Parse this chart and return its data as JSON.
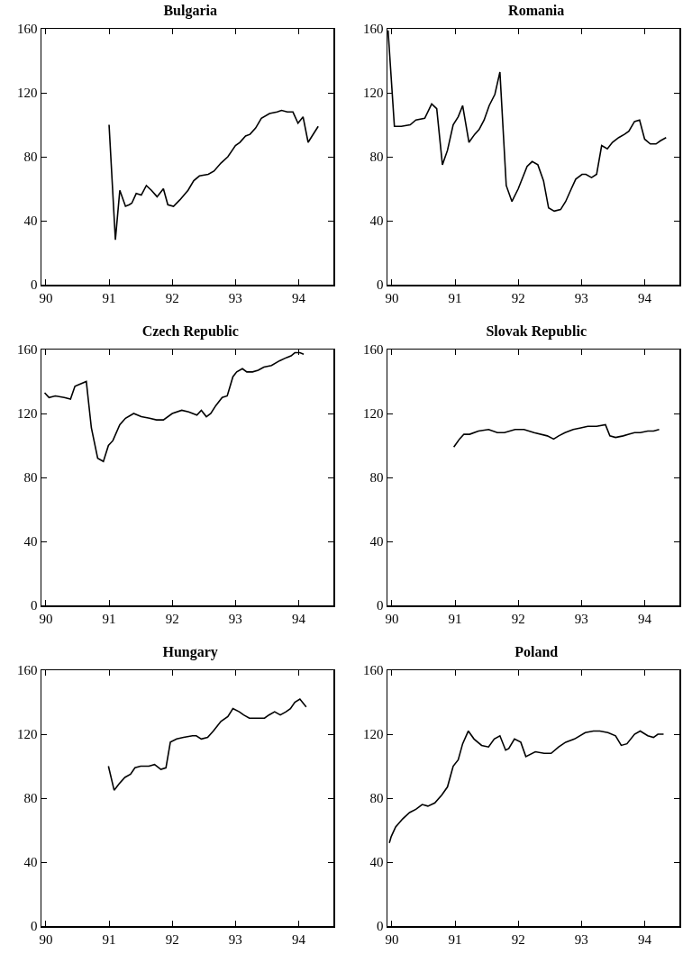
{
  "chart_data": [
    {
      "type": "line",
      "title": "Bulgaria",
      "xlim": [
        89.93,
        94.55
      ],
      "ylim": [
        0,
        160
      ],
      "xticks": [
        {
          "value": 90,
          "label": "90"
        },
        {
          "value": 91,
          "label": "91"
        },
        {
          "value": 92,
          "label": "92"
        },
        {
          "value": 93,
          "label": "93"
        },
        {
          "value": 94,
          "label": "94"
        }
      ],
      "yticks": [
        0,
        40,
        80,
        120,
        160
      ],
      "x": [
        91.0,
        91.1,
        91.17,
        91.26,
        91.32,
        91.36,
        91.43,
        91.51,
        91.59,
        91.67,
        91.76,
        91.86,
        91.93,
        92.02,
        92.12,
        92.25,
        92.34,
        92.43,
        92.57,
        92.66,
        92.77,
        92.88,
        93.0,
        93.07,
        93.16,
        93.23,
        93.32,
        93.41,
        93.54,
        93.66,
        93.73,
        93.82,
        93.91,
        93.99,
        94.07,
        94.15,
        94.31
      ],
      "series": [
        {
          "color": "#000000",
          "values": [
            100,
            28,
            59,
            49,
            50,
            51,
            57,
            56,
            62,
            59,
            55,
            60,
            50,
            49,
            53,
            59,
            65,
            68,
            69,
            71,
            76,
            80,
            87,
            89,
            93,
            94,
            98,
            104,
            107,
            108,
            109,
            108,
            108,
            101,
            105,
            89,
            99
          ]
        }
      ]
    },
    {
      "type": "line",
      "title": "Romania",
      "xlim": [
        89.93,
        94.55
      ],
      "ylim": [
        0,
        160
      ],
      "xticks": [
        {
          "value": 90,
          "label": "90"
        },
        {
          "value": 91,
          "label": "91"
        },
        {
          "value": 92,
          "label": "92"
        },
        {
          "value": 93,
          "label": "93"
        },
        {
          "value": 94,
          "label": "94"
        }
      ],
      "yticks": [
        0,
        40,
        80,
        120,
        160
      ],
      "x": [
        89.94,
        90.04,
        90.15,
        90.29,
        90.38,
        90.52,
        90.63,
        90.71,
        90.8,
        90.88,
        90.97,
        91.05,
        91.12,
        91.22,
        91.31,
        91.38,
        91.46,
        91.54,
        91.63,
        91.71,
        91.81,
        91.9,
        92.0,
        92.14,
        92.22,
        92.31,
        92.4,
        92.48,
        92.57,
        92.67,
        92.75,
        92.84,
        92.91,
        93.01,
        93.07,
        93.16,
        93.24,
        93.32,
        93.41,
        93.49,
        93.59,
        93.68,
        93.75,
        93.84,
        93.92,
        94.0,
        94.09,
        94.18,
        94.25,
        94.34
      ],
      "series": [
        {
          "color": "#000000",
          "values": [
            159,
            99,
            99,
            100,
            103,
            104,
            113,
            110,
            75,
            84,
            100,
            105,
            112,
            89,
            94,
            97,
            103,
            112,
            119,
            133,
            62,
            52,
            60,
            74,
            77,
            75,
            65,
            48,
            46,
            47,
            52,
            60,
            66,
            69,
            69,
            67,
            69,
            87,
            85,
            89,
            92,
            94,
            96,
            102,
            103,
            91,
            88,
            88,
            90,
            92
          ]
        }
      ]
    },
    {
      "type": "line",
      "title": "Czech Republic",
      "xlim": [
        89.93,
        94.55
      ],
      "ylim": [
        0,
        160
      ],
      "xticks": [
        {
          "value": 90,
          "label": "90"
        },
        {
          "value": 91,
          "label": "91"
        },
        {
          "value": 92,
          "label": "92"
        },
        {
          "value": 93,
          "label": "93"
        },
        {
          "value": 94,
          "label": "94"
        }
      ],
      "yticks": [
        0,
        40,
        80,
        120,
        160
      ],
      "x": [
        89.98,
        90.05,
        90.15,
        90.29,
        90.39,
        90.46,
        90.52,
        90.64,
        90.72,
        90.82,
        90.91,
        90.99,
        91.06,
        91.17,
        91.26,
        91.39,
        91.51,
        91.64,
        91.75,
        91.86,
        92.0,
        92.15,
        92.26,
        92.39,
        92.46,
        92.54,
        92.61,
        92.69,
        92.79,
        92.87,
        92.96,
        93.02,
        93.11,
        93.18,
        93.27,
        93.36,
        93.45,
        93.57,
        93.7,
        93.81,
        93.88,
        93.94,
        94.02,
        94.08
      ],
      "series": [
        {
          "color": "#000000",
          "values": [
            133,
            130,
            131,
            130,
            129,
            137,
            138,
            140,
            111,
            92,
            90,
            100,
            103,
            113,
            117,
            120,
            118,
            117,
            116,
            116,
            120,
            122,
            121,
            119,
            122,
            118,
            120,
            125,
            130,
            131,
            143,
            146,
            148,
            146,
            146,
            147,
            149,
            150,
            153,
            155,
            156,
            158,
            158,
            157
          ]
        }
      ]
    },
    {
      "type": "line",
      "title": "Slovak Republic",
      "xlim": [
        89.93,
        94.55
      ],
      "ylim": [
        0,
        160
      ],
      "xticks": [
        {
          "value": 90,
          "label": "90"
        },
        {
          "value": 91,
          "label": "91"
        },
        {
          "value": 92,
          "label": "92"
        },
        {
          "value": 93,
          "label": "93"
        },
        {
          "value": 94,
          "label": "94"
        }
      ],
      "yticks": [
        0,
        40,
        80,
        120,
        160
      ],
      "x": [
        90.98,
        91.07,
        91.14,
        91.23,
        91.37,
        91.53,
        91.67,
        91.78,
        91.95,
        92.09,
        92.25,
        92.46,
        92.56,
        92.64,
        92.74,
        92.87,
        92.99,
        93.1,
        93.24,
        93.38,
        93.45,
        93.54,
        93.66,
        93.75,
        93.84,
        93.93,
        94.05,
        94.14,
        94.23
      ],
      "series": [
        {
          "color": "#000000",
          "values": [
            99,
            104,
            107,
            107,
            109,
            110,
            108,
            108,
            110,
            110,
            108,
            106,
            104,
            106,
            108,
            110,
            111,
            112,
            112,
            113,
            106,
            105,
            106,
            107,
            108,
            108,
            109,
            109,
            110
          ]
        }
      ]
    },
    {
      "type": "line",
      "title": "Hungary",
      "xlim": [
        89.93,
        94.55
      ],
      "ylim": [
        0,
        160
      ],
      "xticks": [
        {
          "value": 90,
          "label": "90"
        },
        {
          "value": 91,
          "label": "91"
        },
        {
          "value": 92,
          "label": "92"
        },
        {
          "value": 93,
          "label": "93"
        },
        {
          "value": 94,
          "label": "94"
        }
      ],
      "yticks": [
        0,
        40,
        80,
        120,
        160
      ],
      "x": [
        90.99,
        91.08,
        91.16,
        91.25,
        91.34,
        91.41,
        91.5,
        91.63,
        91.72,
        91.82,
        91.9,
        91.97,
        92.07,
        92.18,
        92.32,
        92.38,
        92.46,
        92.56,
        92.65,
        92.77,
        92.88,
        92.96,
        93.06,
        93.13,
        93.22,
        93.33,
        93.46,
        93.53,
        93.62,
        93.71,
        93.8,
        93.87,
        93.94,
        94.02,
        94.12
      ],
      "series": [
        {
          "color": "#000000",
          "values": [
            100,
            85,
            89,
            93,
            95,
            99,
            100,
            100,
            101,
            98,
            99,
            115,
            117,
            118,
            119,
            119,
            117,
            118,
            122,
            128,
            131,
            136,
            134,
            132,
            130,
            130,
            130,
            132,
            134,
            132,
            134,
            136,
            140,
            142,
            137
          ]
        }
      ]
    },
    {
      "type": "line",
      "title": "Poland",
      "xlim": [
        89.93,
        94.55
      ],
      "ylim": [
        0,
        160
      ],
      "xticks": [
        {
          "value": 90,
          "label": "90"
        },
        {
          "value": 91,
          "label": "91"
        },
        {
          "value": 92,
          "label": "92"
        },
        {
          "value": 93,
          "label": "93"
        },
        {
          "value": 94,
          "label": "94"
        }
      ],
      "yticks": [
        0,
        40,
        80,
        120,
        160
      ],
      "x": [
        89.96,
        89.99,
        90.06,
        90.17,
        90.28,
        90.38,
        90.48,
        90.57,
        90.68,
        90.79,
        90.88,
        90.97,
        91.05,
        91.12,
        91.21,
        91.3,
        91.42,
        91.53,
        91.62,
        91.71,
        91.8,
        91.85,
        91.94,
        92.04,
        92.12,
        92.27,
        92.41,
        92.52,
        92.64,
        92.75,
        92.89,
        93.06,
        93.19,
        93.29,
        93.42,
        93.54,
        93.63,
        93.72,
        93.84,
        93.93,
        94.05,
        94.14,
        94.21,
        94.3
      ],
      "series": [
        {
          "color": "#000000",
          "values": [
            52,
            56,
            62,
            67,
            71,
            73,
            76,
            75,
            77,
            82,
            87,
            100,
            104,
            114,
            122,
            117,
            113,
            112,
            117,
            119,
            110,
            111,
            117,
            115,
            106,
            109,
            108,
            108,
            112,
            115,
            117,
            121,
            122,
            122,
            121,
            119,
            113,
            114,
            120,
            122,
            119,
            118,
            120,
            120
          ]
        }
      ]
    }
  ]
}
